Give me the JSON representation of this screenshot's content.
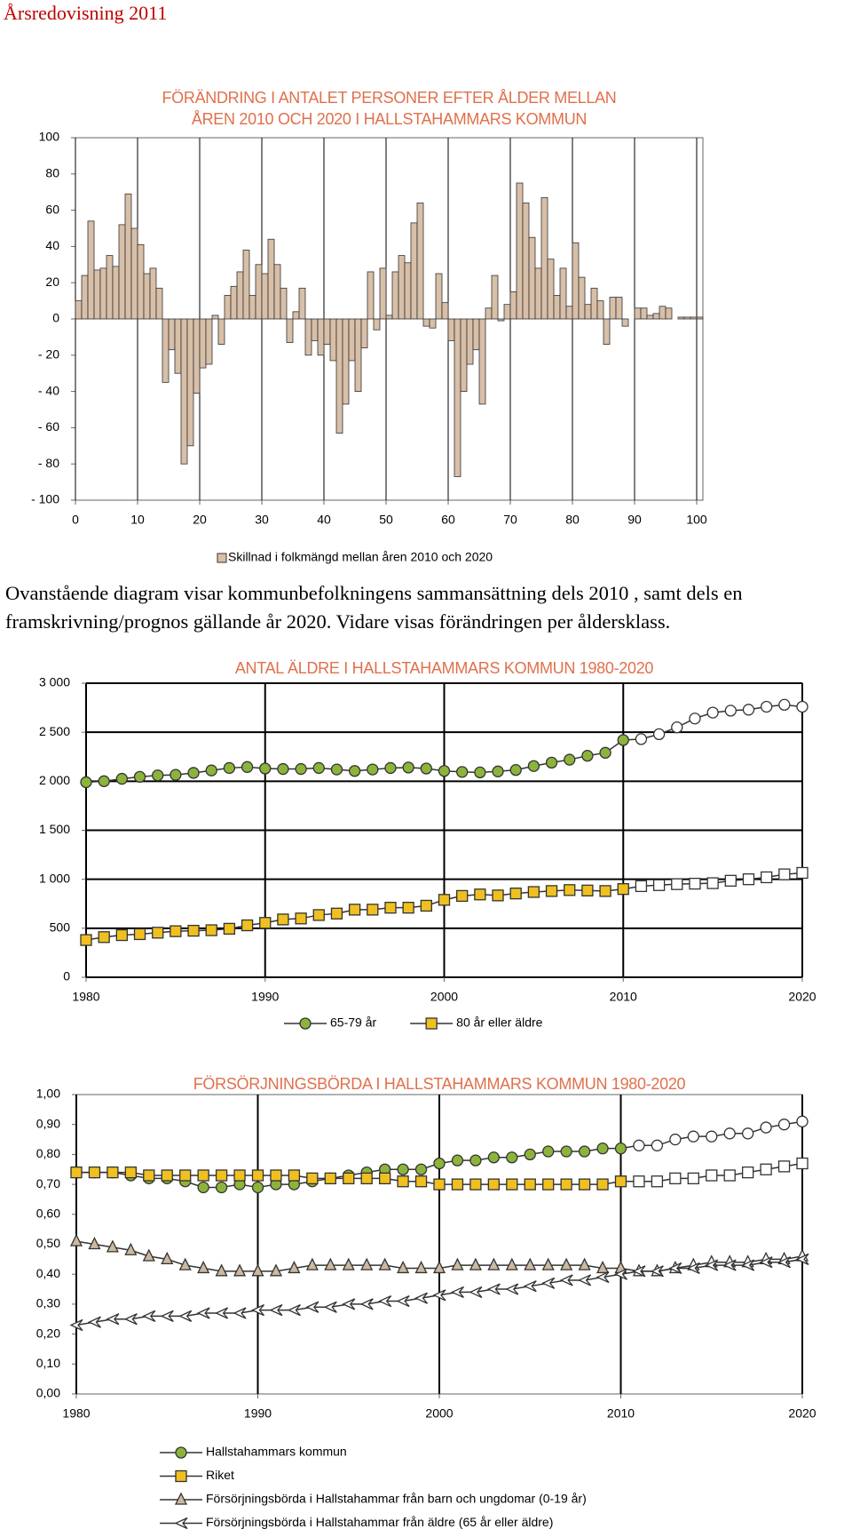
{
  "header": {
    "title": "Årsredovisning 2011"
  },
  "text": {
    "paragraph": "Ovanstående diagram visar kommunbefolkningens sammansättning dels 2010 , samt dels en framskrivning/prognos gällande år 2020. Vidare visas förändringen per åldersklass."
  },
  "chart_data": [
    {
      "type": "bar",
      "title": "FÖRÄNDRING I ANTALET PERSONER EFTER ÅLDER MELLAN ÅREN 2010 OCH 2020 I HALLSTAHAMMARS KOMMUN",
      "x": [
        0,
        1,
        2,
        3,
        4,
        5,
        6,
        7,
        8,
        9,
        10,
        11,
        12,
        13,
        14,
        15,
        16,
        17,
        18,
        19,
        20,
        21,
        22,
        23,
        24,
        25,
        26,
        27,
        28,
        29,
        30,
        31,
        32,
        33,
        34,
        35,
        36,
        37,
        38,
        39,
        40,
        41,
        42,
        43,
        44,
        45,
        46,
        47,
        48,
        49,
        50,
        51,
        52,
        53,
        54,
        55,
        56,
        57,
        58,
        59,
        60,
        61,
        62,
        63,
        64,
        65,
        66,
        67,
        68,
        69,
        70,
        71,
        72,
        73,
        74,
        75,
        76,
        77,
        78,
        79,
        80,
        81,
        82,
        83,
        84,
        85,
        86,
        87,
        88,
        89,
        90,
        91,
        92,
        93,
        94,
        95,
        96,
        97,
        98,
        99,
        100
      ],
      "series": [
        {
          "name": "Skillnad i folkmängd mellan åren 2010 och 2020",
          "color": "#d8bfa8",
          "values": [
            10,
            24,
            54,
            27,
            28,
            35,
            29,
            52,
            69,
            50,
            41,
            25,
            28,
            17,
            -35,
            -17,
            -30,
            -80,
            -70,
            -41,
            -27,
            -25,
            2,
            -14,
            13,
            18,
            26,
            38,
            13,
            30,
            25,
            44,
            30,
            17,
            -13,
            4,
            17,
            -20,
            -12,
            -20,
            -14,
            -23,
            -63,
            -47,
            -23,
            -40,
            -16,
            26,
            -6,
            28,
            2,
            26,
            35,
            31,
            53,
            64,
            -4,
            -5,
            25,
            9,
            -12,
            -87,
            -40,
            -25,
            -17,
            -47,
            6,
            24,
            -1,
            8,
            15,
            75,
            64,
            45,
            28,
            67,
            33,
            13,
            28,
            7,
            42,
            23,
            8,
            17,
            10,
            -14,
            12,
            12,
            -4,
            0,
            6,
            6,
            2,
            3,
            7,
            6,
            0,
            1,
            1,
            1,
            1
          ]
        }
      ],
      "xlim": [
        0,
        101
      ],
      "xticks": [
        0,
        10,
        20,
        30,
        40,
        50,
        60,
        70,
        80,
        90,
        100
      ],
      "ylim": [
        -100,
        100
      ],
      "yticks": [
        {
          "value": -100,
          "label": "- 100"
        },
        {
          "value": -80,
          "label": "- 80"
        },
        {
          "value": -60,
          "label": "- 60"
        },
        {
          "value": -40,
          "label": "- 40"
        },
        {
          "value": -20,
          "label": "- 20"
        },
        0,
        20,
        40,
        60,
        80,
        100
      ],
      "grid": "x",
      "legend": "bottom"
    },
    {
      "type": "line",
      "title": "ANTAL ÄLDRE I HALLSTAHAMMARS KOMMUN 1980-2020",
      "x": [
        1980,
        1981,
        1982,
        1983,
        1984,
        1985,
        1986,
        1987,
        1988,
        1989,
        1990,
        1991,
        1992,
        1993,
        1994,
        1995,
        1996,
        1997,
        1998,
        1999,
        2000,
        2001,
        2002,
        2003,
        2004,
        2005,
        2006,
        2007,
        2008,
        2009,
        2010,
        2011,
        2012,
        2013,
        2014,
        2015,
        2016,
        2017,
        2018,
        2019,
        2020
      ],
      "series": [
        {
          "name": "65-79 år",
          "color": "#8cb43c",
          "marker": "circle",
          "values": [
            1990,
            2000,
            2025,
            2045,
            2060,
            2065,
            2085,
            2110,
            2135,
            2145,
            2130,
            2125,
            2125,
            2135,
            2120,
            2105,
            2120,
            2135,
            2140,
            2130,
            2105,
            2095,
            2090,
            2100,
            2115,
            2155,
            2190,
            2220,
            2260,
            2290,
            2420,
            2430,
            2480,
            2550,
            2640,
            2700,
            2720,
            2730,
            2760,
            2780,
            2760
          ]
        },
        {
          "name": "80 år eller äldre",
          "color": "#f0c020",
          "marker": "square",
          "values": [
            380,
            410,
            430,
            440,
            455,
            470,
            475,
            480,
            495,
            530,
            555,
            590,
            600,
            635,
            650,
            690,
            690,
            710,
            710,
            730,
            790,
            830,
            845,
            835,
            855,
            870,
            880,
            890,
            885,
            880,
            900,
            930,
            940,
            950,
            955,
            960,
            985,
            1000,
            1020,
            1050,
            1065
          ]
        }
      ],
      "hollow_from": 2011,
      "xlim": [
        1980,
        2020
      ],
      "xticks": [
        1980,
        1990,
        2000,
        2010,
        2020
      ],
      "ylim": [
        0,
        3000
      ],
      "yticks": [
        0,
        500,
        {
          "value": 1000,
          "label": "1 000"
        },
        {
          "value": 1500,
          "label": "1 500"
        },
        {
          "value": 2000,
          "label": "2 000"
        },
        {
          "value": 2500,
          "label": "2 500"
        },
        {
          "value": 3000,
          "label": "3 000"
        }
      ],
      "grid": "both",
      "legend": "bottom"
    },
    {
      "type": "line",
      "title": "FÖRSÖRJNINGSBÖRDA I HALLSTAHAMMARS KOMMUN 1980-2020",
      "x": [
        1980,
        1981,
        1982,
        1983,
        1984,
        1985,
        1986,
        1987,
        1988,
        1989,
        1990,
        1991,
        1992,
        1993,
        1994,
        1995,
        1996,
        1997,
        1998,
        1999,
        2000,
        2001,
        2002,
        2003,
        2004,
        2005,
        2006,
        2007,
        2008,
        2009,
        2010,
        2011,
        2012,
        2013,
        2014,
        2015,
        2016,
        2017,
        2018,
        2019,
        2020
      ],
      "series": [
        {
          "name": "Hallstahammars kommun",
          "color": "#8cb43c",
          "marker": "circle",
          "values": [
            0.74,
            0.74,
            0.74,
            0.73,
            0.72,
            0.72,
            0.71,
            0.69,
            0.69,
            0.7,
            0.69,
            0.7,
            0.7,
            0.71,
            0.72,
            0.73,
            0.74,
            0.75,
            0.75,
            0.75,
            0.77,
            0.78,
            0.78,
            0.79,
            0.79,
            0.8,
            0.81,
            0.81,
            0.81,
            0.82,
            0.82,
            0.83,
            0.83,
            0.85,
            0.86,
            0.86,
            0.87,
            0.87,
            0.89,
            0.9,
            0.91
          ]
        },
        {
          "name": "Riket",
          "color": "#f0c020",
          "marker": "square",
          "values": [
            0.74,
            0.74,
            0.74,
            0.74,
            0.73,
            0.73,
            0.73,
            0.73,
            0.73,
            0.73,
            0.73,
            0.73,
            0.73,
            0.72,
            0.72,
            0.72,
            0.72,
            0.72,
            0.71,
            0.71,
            0.7,
            0.7,
            0.7,
            0.7,
            0.7,
            0.7,
            0.7,
            0.7,
            0.7,
            0.7,
            0.71,
            0.71,
            0.71,
            0.72,
            0.72,
            0.73,
            0.73,
            0.74,
            0.75,
            0.76,
            0.77
          ]
        },
        {
          "name": "Försörjningsbörda i Hallstahammar från barn och ungdomar (0-19 år)",
          "color": "#cdb8a0",
          "marker": "triangle",
          "values": [
            0.51,
            0.5,
            0.49,
            0.48,
            0.46,
            0.45,
            0.43,
            0.42,
            0.41,
            0.41,
            0.41,
            0.41,
            0.42,
            0.43,
            0.43,
            0.43,
            0.43,
            0.43,
            0.42,
            0.42,
            0.42,
            0.43,
            0.43,
            0.43,
            0.43,
            0.43,
            0.43,
            0.43,
            0.43,
            0.42,
            0.42,
            0.41,
            0.41,
            0.42,
            0.43,
            0.44,
            0.44,
            0.44,
            0.45,
            0.45,
            0.46
          ]
        },
        {
          "name": "Försörjningsbörda i Hallstahammar från äldre (65 år eller äldre)",
          "color": "#ffffff",
          "marker": "chevron",
          "values": [
            0.23,
            0.24,
            0.25,
            0.25,
            0.26,
            0.26,
            0.26,
            0.27,
            0.27,
            0.27,
            0.28,
            0.28,
            0.28,
            0.29,
            0.29,
            0.3,
            0.3,
            0.31,
            0.31,
            0.32,
            0.33,
            0.34,
            0.34,
            0.35,
            0.35,
            0.36,
            0.37,
            0.38,
            0.38,
            0.39,
            0.4,
            0.41,
            0.41,
            0.42,
            0.42,
            0.43,
            0.43,
            0.43,
            0.44,
            0.44,
            0.45
          ]
        }
      ],
      "hollow_from": 2011,
      "xlim": [
        1980,
        2020
      ],
      "xticks": [
        1980,
        1990,
        2000,
        2010,
        2020
      ],
      "ylim": [
        0,
        1
      ],
      "yticks": [
        {
          "value": 0,
          "label": "0,00"
        },
        {
          "value": 0.1,
          "label": "0,10"
        },
        {
          "value": 0.2,
          "label": "0,20"
        },
        {
          "value": 0.3,
          "label": "0,30"
        },
        {
          "value": 0.4,
          "label": "0,40"
        },
        {
          "value": 0.5,
          "label": "0,50"
        },
        {
          "value": 0.6,
          "label": "0,60"
        },
        {
          "value": 0.7,
          "label": "0,70"
        },
        {
          "value": 0.8,
          "label": "0,80"
        },
        {
          "value": 0.9,
          "label": "0,90"
        },
        {
          "value": 1,
          "label": "1,00"
        }
      ],
      "grid": "x",
      "legend": "bottom"
    }
  ]
}
